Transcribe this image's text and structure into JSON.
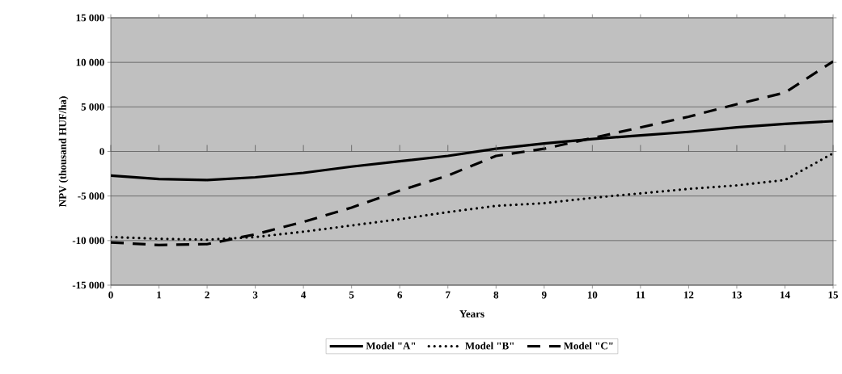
{
  "chart_data": {
    "type": "line",
    "xlabel": "Years",
    "ylabel": "NPV (thousand HUF/ha)",
    "x": [
      0,
      1,
      2,
      3,
      4,
      5,
      6,
      7,
      8,
      9,
      10,
      11,
      12,
      13,
      14,
      15
    ],
    "xlim": [
      0,
      15
    ],
    "xticks": [
      0,
      1,
      2,
      3,
      4,
      5,
      6,
      7,
      8,
      9,
      10,
      11,
      12,
      13,
      14,
      15
    ],
    "ylim": [
      -15000,
      15000
    ],
    "yticks": [
      {
        "value": -15000,
        "label": "-15 000"
      },
      {
        "value": -10000,
        "label": "-10 000"
      },
      {
        "value": -5000,
        "label": "-5 000"
      },
      0,
      {
        "value": 5000,
        "label": "5 000"
      },
      {
        "value": 10000,
        "label": "10 000"
      },
      {
        "value": 15000,
        "label": "15 000"
      }
    ],
    "grid": "y",
    "legend": "bottom",
    "series": [
      {
        "name": "Model \"A\"",
        "color": "#000000",
        "line_style": "solid",
        "values": [
          -2700,
          -3100,
          -3200,
          -2900,
          -2400,
          -1700,
          -1100,
          -500,
          300,
          900,
          1400,
          1800,
          2200,
          2700,
          3100,
          3400
        ]
      },
      {
        "name": "Model \"B\"",
        "color": "#000000",
        "line_style": "dotted",
        "values": [
          -9600,
          -9800,
          -9900,
          -9600,
          -9000,
          -8300,
          -7600,
          -6800,
          -6100,
          -5800,
          -5200,
          -4700,
          -4200,
          -3800,
          -3200,
          -200
        ]
      },
      {
        "name": "Model \"C\"",
        "color": "#000000",
        "line_style": "dashed",
        "values": [
          -10200,
          -10500,
          -10400,
          -9300,
          -7900,
          -6300,
          -4400,
          -2700,
          -500,
          300,
          1500,
          2700,
          3900,
          5300,
          6600,
          10100
        ]
      }
    ]
  }
}
